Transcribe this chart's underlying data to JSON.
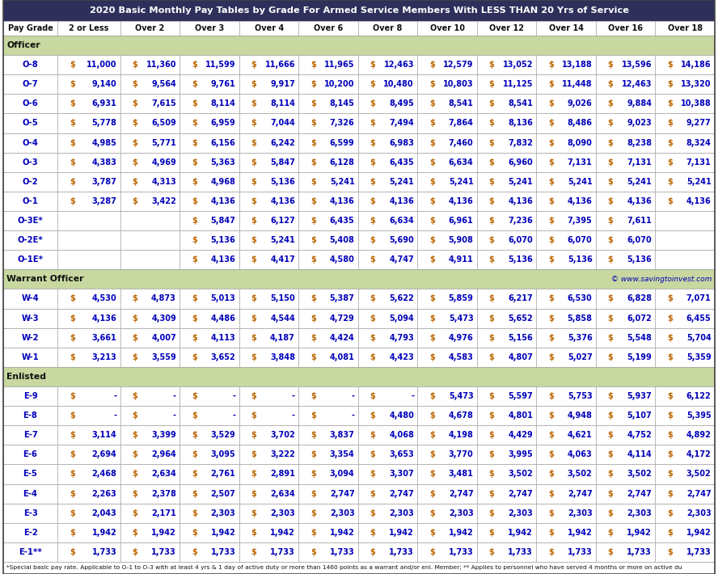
{
  "title_text": "2020 Basic Monthly Pay Tables by Grade For Armed Service Members With LESS THAN 20 Yrs of Service",
  "header_cols": [
    "Pay Grade",
    "2 or Less",
    "Over 2",
    "Over 3",
    "Over 4",
    "Over 6",
    "Over 8",
    "Over 10",
    "Over 12",
    "Over 14",
    "Over 16",
    "Over 18"
  ],
  "section_officer": "Officer",
  "section_warrant": "Warrant Officer",
  "section_enlisted": "Enlisted",
  "section_bg": "#C8D8A0",
  "watermark": "© www.savingtoinvest.com",
  "officer_rows": [
    [
      "O-8",
      "$",
      "11,000",
      "$",
      "11,360",
      "$",
      "11,599",
      "$",
      "11,666",
      "$",
      "11,965",
      "$",
      "12,463",
      "$",
      "12,579",
      "$",
      "13,052",
      "$",
      "13,188",
      "$",
      "13,596",
      "$",
      "14,186"
    ],
    [
      "O-7",
      "$",
      "9,140",
      "$",
      "9,564",
      "$",
      "9,761",
      "$",
      "9,917",
      "$",
      "10,200",
      "$",
      "10,480",
      "$",
      "10,803",
      "$",
      "11,125",
      "$",
      "11,448",
      "$",
      "12,463",
      "$",
      "13,320"
    ],
    [
      "O-6",
      "$",
      "6,931",
      "$",
      "7,615",
      "$",
      "8,114",
      "$",
      "8,114",
      "$",
      "8,145",
      "$",
      "8,495",
      "$",
      "8,541",
      "$",
      "8,541",
      "$",
      "9,026",
      "$",
      "9,884",
      "$",
      "10,388"
    ],
    [
      "O-5",
      "$",
      "5,778",
      "$",
      "6,509",
      "$",
      "6,959",
      "$",
      "7,044",
      "$",
      "7,326",
      "$",
      "7,494",
      "$",
      "7,864",
      "$",
      "8,136",
      "$",
      "8,486",
      "$",
      "9,023",
      "$",
      "9,277"
    ],
    [
      "O-4",
      "$",
      "4,985",
      "$",
      "5,771",
      "$",
      "6,156",
      "$",
      "6,242",
      "$",
      "6,599",
      "$",
      "6,983",
      "$",
      "7,460",
      "$",
      "7,832",
      "$",
      "8,090",
      "$",
      "8,238",
      "$",
      "8,324"
    ],
    [
      "O-3",
      "$",
      "4,383",
      "$",
      "4,969",
      "$",
      "5,363",
      "$",
      "5,847",
      "$",
      "6,128",
      "$",
      "6,435",
      "$",
      "6,634",
      "$",
      "6,960",
      "$",
      "7,131",
      "$",
      "7,131",
      "$",
      "7,131"
    ],
    [
      "O-2",
      "$",
      "3,787",
      "$",
      "4,313",
      "$",
      "4,968",
      "$",
      "5,136",
      "$",
      "5,241",
      "$",
      "5,241",
      "$",
      "5,241",
      "$",
      "5,241",
      "$",
      "5,241",
      "$",
      "5,241",
      "$",
      "5,241"
    ],
    [
      "O-1",
      "$",
      "3,287",
      "$",
      "3,422",
      "$",
      "4,136",
      "$",
      "4,136",
      "$",
      "4,136",
      "$",
      "4,136",
      "$",
      "4,136",
      "$",
      "4,136",
      "$",
      "4,136",
      "$",
      "4,136",
      "$",
      "4,136"
    ],
    [
      "O-3E*",
      "",
      "",
      "",
      "",
      "$",
      "5,847",
      "$",
      "6,127",
      "$",
      "6,435",
      "$",
      "6,634",
      "$",
      "6,961",
      "$",
      "7,236",
      "$",
      "7,395",
      "$",
      "7,611"
    ],
    [
      "O-2E*",
      "",
      "",
      "",
      "",
      "$",
      "5,136",
      "$",
      "5,241",
      "$",
      "5,408",
      "$",
      "5,690",
      "$",
      "5,908",
      "$",
      "6,070",
      "$",
      "6,070",
      "$",
      "6,070"
    ],
    [
      "O-1E*",
      "",
      "",
      "",
      "",
      "$",
      "4,136",
      "$",
      "4,417",
      "$",
      "4,580",
      "$",
      "4,747",
      "$",
      "4,911",
      "$",
      "5,136",
      "$",
      "5,136",
      "$",
      "5,136"
    ]
  ],
  "warrant_rows": [
    [
      "W-4",
      "$",
      "4,530",
      "$",
      "4,873",
      "$",
      "5,013",
      "$",
      "5,150",
      "$",
      "5,387",
      "$",
      "5,622",
      "$",
      "5,859",
      "$",
      "6,217",
      "$",
      "6,530",
      "$",
      "6,828",
      "$",
      "7,071"
    ],
    [
      "W-3",
      "$",
      "4,136",
      "$",
      "4,309",
      "$",
      "4,486",
      "$",
      "4,544",
      "$",
      "4,729",
      "$",
      "5,094",
      "$",
      "5,473",
      "$",
      "5,652",
      "$",
      "5,858",
      "$",
      "6,072",
      "$",
      "6,455"
    ],
    [
      "W-2",
      "$",
      "3,661",
      "$",
      "4,007",
      "$",
      "4,113",
      "$",
      "4,187",
      "$",
      "4,424",
      "$",
      "4,793",
      "$",
      "4,976",
      "$",
      "5,156",
      "$",
      "5,376",
      "$",
      "5,548",
      "$",
      "5,704"
    ],
    [
      "W-1",
      "$",
      "3,213",
      "$",
      "3,559",
      "$",
      "3,652",
      "$",
      "3,848",
      "$",
      "4,081",
      "$",
      "4,423",
      "$",
      "4,583",
      "$",
      "4,807",
      "$",
      "5,027",
      "$",
      "5,199",
      "$",
      "5,359"
    ]
  ],
  "enlisted_rows": [
    [
      "E-9",
      "$",
      "-",
      "$",
      "-",
      "$",
      "-",
      "$",
      "-",
      "$",
      "-",
      "$",
      "-",
      "$",
      "5,473",
      "$",
      "5,597",
      "$",
      "5,753",
      "$",
      "5,937",
      "$",
      "6,122"
    ],
    [
      "E-8",
      "$",
      "-",
      "$",
      "-",
      "$",
      "-",
      "$",
      "-",
      "$",
      "-",
      "$",
      "4,480",
      "$",
      "4,678",
      "$",
      "4,801",
      "$",
      "4,948",
      "$",
      "5,107",
      "$",
      "5,395"
    ],
    [
      "E-7",
      "$",
      "3,114",
      "$",
      "3,399",
      "$",
      "3,529",
      "$",
      "3,702",
      "$",
      "3,837",
      "$",
      "4,068",
      "$",
      "4,198",
      "$",
      "4,429",
      "$",
      "4,621",
      "$",
      "4,752",
      "$",
      "4,892"
    ],
    [
      "E-6",
      "$",
      "2,694",
      "$",
      "2,964",
      "$",
      "3,095",
      "$",
      "3,222",
      "$",
      "3,354",
      "$",
      "3,653",
      "$",
      "3,770",
      "$",
      "3,995",
      "$",
      "4,063",
      "$",
      "4,114",
      "$",
      "4,172"
    ],
    [
      "E-5",
      "$",
      "2,468",
      "$",
      "2,634",
      "$",
      "2,761",
      "$",
      "2,891",
      "$",
      "3,094",
      "$",
      "3,307",
      "$",
      "3,481",
      "$",
      "3,502",
      "$",
      "3,502",
      "$",
      "3,502",
      "$",
      "3,502"
    ],
    [
      "E-4",
      "$",
      "2,263",
      "$",
      "2,378",
      "$",
      "2,507",
      "$",
      "2,634",
      "$",
      "2,747",
      "$",
      "2,747",
      "$",
      "2,747",
      "$",
      "2,747",
      "$",
      "2,747",
      "$",
      "2,747",
      "$",
      "2,747"
    ],
    [
      "E-3",
      "$",
      "2,043",
      "$",
      "2,171",
      "$",
      "2,303",
      "$",
      "2,303",
      "$",
      "2,303",
      "$",
      "2,303",
      "$",
      "2,303",
      "$",
      "2,303",
      "$",
      "2,303",
      "$",
      "2,303",
      "$",
      "2,303"
    ],
    [
      "E-2",
      "$",
      "1,942",
      "$",
      "1,942",
      "$",
      "1,942",
      "$",
      "1,942",
      "$",
      "1,942",
      "$",
      "1,942",
      "$",
      "1,942",
      "$",
      "1,942",
      "$",
      "1,942",
      "$",
      "1,942",
      "$",
      "1,942"
    ],
    [
      "E-1**",
      "$",
      "1,733",
      "$",
      "1,733",
      "$",
      "1,733",
      "$",
      "1,733",
      "$",
      "1,733",
      "$",
      "1,733",
      "$",
      "1,733",
      "$",
      "1,733",
      "$",
      "1,733",
      "$",
      "1,733",
      "$",
      "1,733"
    ]
  ],
  "footer_note": "*Special basic pay rate. Applicable to O-1 to O-3 with at least 4 yrs & 1 day of active duty or more than 1460 points as a warrant and/or enl. Member; ** Applies to personnel who have served 4 months or more on active du",
  "bg_white": "#FFFFFF",
  "bg_header": "#2E2F5B",
  "text_dark": "#111111",
  "text_blue": "#0000BB",
  "text_orange": "#BB6600",
  "text_white": "#FFFFFF",
  "grid_color": "#999999",
  "col_widths_raw": [
    62,
    72,
    68,
    68,
    68,
    68,
    68,
    68,
    68,
    68,
    68,
    68
  ]
}
